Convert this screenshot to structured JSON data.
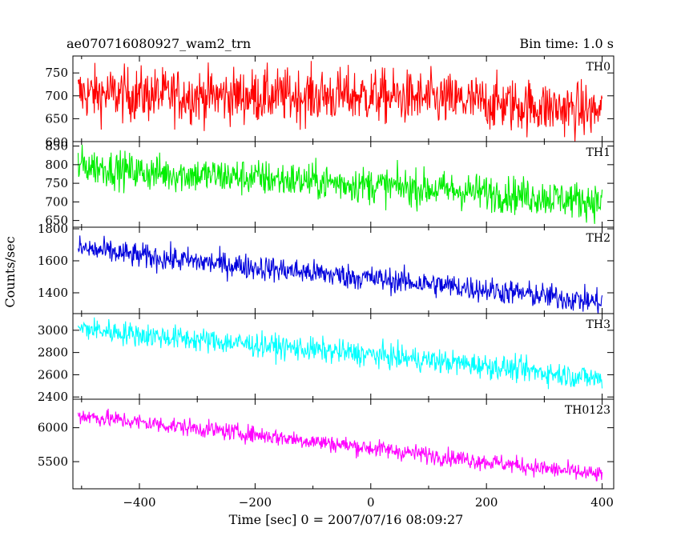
{
  "header": {
    "left_title": "ae070716080927_wam2_trn",
    "right_title": "Bin time: 1.0 s"
  },
  "chart_data": {
    "type": "line",
    "title": "ae070716080927_wam2_trn",
    "subtitle": "Bin time: 1.0 s",
    "xlabel": "Time [sec] 0 = 2007/07/16 08:09:27",
    "ylabel": "Counts/sec",
    "xlim": [
      -515,
      420
    ],
    "x_ticks": [
      -400,
      -200,
      0,
      200,
      400
    ],
    "x_tick_labels": [
      "−400",
      "−200",
      "0",
      "200",
      "400"
    ],
    "x_data_range": [
      -506,
      400
    ],
    "bin_time_s": 1.0,
    "grid": false,
    "legend": "none",
    "panels": [
      {
        "name": "TH0",
        "color": "#ff0000",
        "ylim": [
          600,
          787
        ],
        "y_ticks": [
          650,
          700,
          750
        ],
        "y_tick_labels": [
          "650",
          "700",
          "750"
        ],
        "extra_tick_label": "600",
        "trend": {
          "x": [
            -506,
            -300,
            0,
            200,
            400
          ],
          "y": [
            705,
            700,
            700,
            685,
            665
          ]
        },
        "noise_sigma": 30
      },
      {
        "name": "TH1",
        "color": "#00ee00",
        "ylim": [
          632,
          862
        ],
        "y_ticks": [
          650,
          700,
          750,
          800,
          850
        ],
        "y_tick_labels": [
          "650",
          "700",
          "750",
          "800",
          "850"
        ],
        "trend": {
          "x": [
            -506,
            -400,
            -200,
            0,
            200,
            400
          ],
          "y": [
            800,
            780,
            765,
            745,
            725,
            700
          ]
        },
        "noise_sigma": 25
      },
      {
        "name": "TH2",
        "color": "#0000dd",
        "ylim": [
          1270,
          1810
        ],
        "y_ticks": [
          1400,
          1600,
          1800
        ],
        "y_tick_labels": [
          "1400",
          "1600",
          "1800"
        ],
        "trend": {
          "x": [
            -506,
            -400,
            -200,
            0,
            200,
            400
          ],
          "y": [
            1680,
            1630,
            1560,
            1490,
            1420,
            1340
          ]
        },
        "noise_sigma": 40
      },
      {
        "name": "TH3",
        "color": "#00ffff",
        "ylim": [
          2380,
          3150
        ],
        "y_ticks": [
          2400,
          2600,
          2800,
          3000
        ],
        "y_tick_labels": [
          "2400",
          "2600",
          "2800",
          "3000"
        ],
        "trend": {
          "x": [
            -506,
            -400,
            -200,
            0,
            200,
            400
          ],
          "y": [
            3020,
            2960,
            2870,
            2780,
            2680,
            2560
          ]
        },
        "noise_sigma": 55
      },
      {
        "name": "TH0123",
        "color": "#ff00ff",
        "ylim": [
          5100,
          6420
        ],
        "y_ticks": [
          5500,
          6000
        ],
        "y_tick_labels": [
          "5500",
          "6000"
        ],
        "trend": {
          "x": [
            -506,
            -400,
            -200,
            0,
            200,
            400
          ],
          "y": [
            6180,
            6080,
            5900,
            5700,
            5500,
            5300
          ]
        },
        "noise_sigma": 65
      }
    ]
  }
}
